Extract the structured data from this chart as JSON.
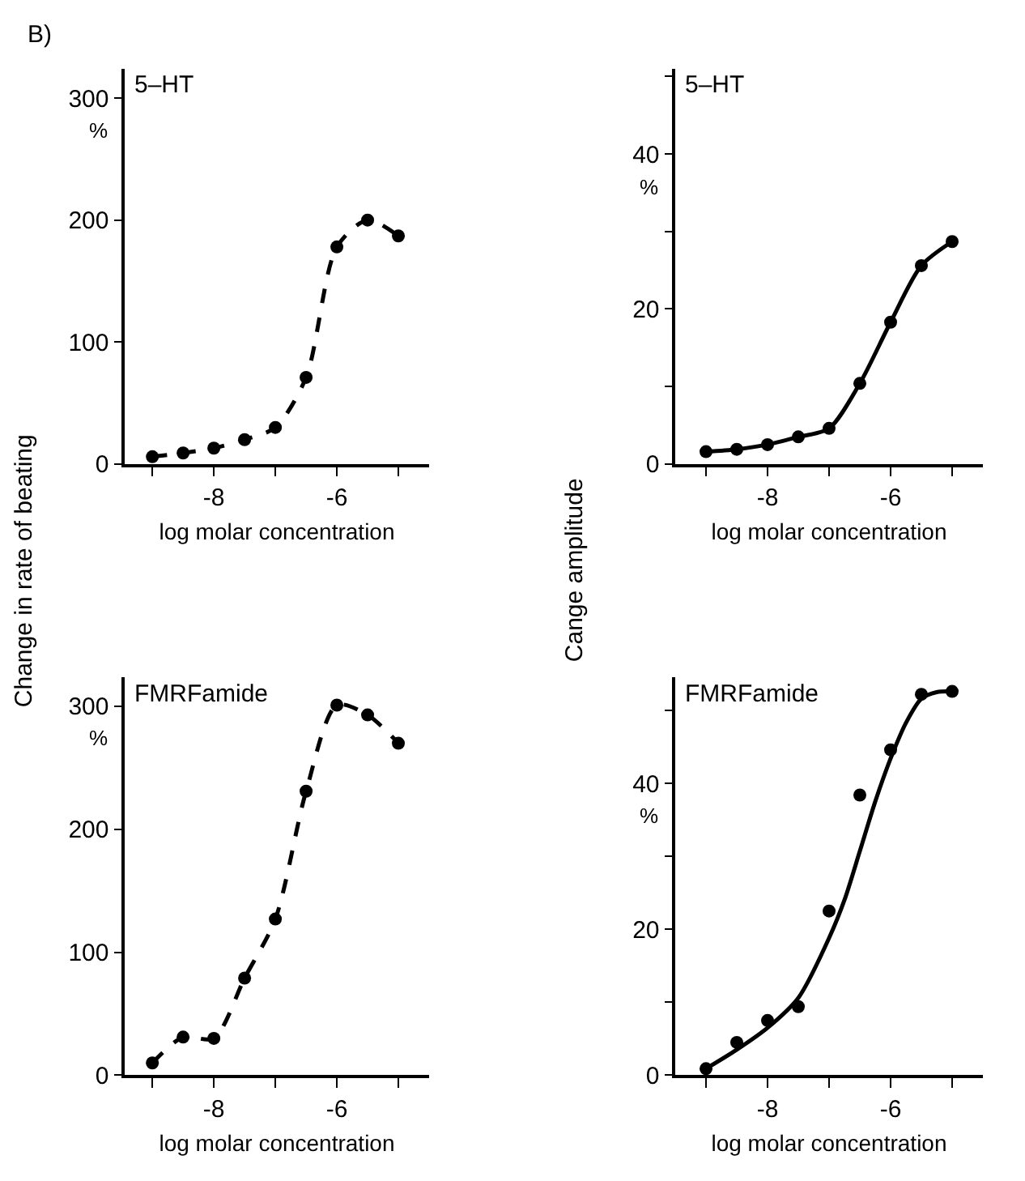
{
  "chart_data": [
    {
      "type": "line",
      "title": "B)",
      "xlabel": "log molar concentration",
      "annotations": [
        "5–HT",
        "%"
      ],
      "x": [
        -9,
        -8.5,
        -8,
        -7.5,
        -7,
        -6.5,
        -6,
        -5.5,
        -5
      ],
      "marker": "circle",
      "line_style": "dashed",
      "series": [
        {
          "color": "#000000",
          "values": [
            6,
            9,
            13,
            20,
            30,
            71,
            178,
            200,
            187
          ]
        }
      ],
      "xlim": [
        -9.45,
        -4.5
      ],
      "xticks": [
        {
          "value": -9,
          "label": null
        },
        -8,
        {
          "value": -7,
          "label": null
        },
        -6,
        {
          "value": -5,
          "label": null
        }
      ],
      "ylim": [
        0,
        324
      ],
      "yticks": [
        0,
        100,
        200,
        300
      ]
    },
    {
      "type": "line",
      "xlabel": "log molar concentration",
      "annotations": [
        "5–HT",
        "%"
      ],
      "x": [
        -9,
        -8.5,
        -8,
        -7.5,
        -7,
        -6.5,
        -6,
        -5.5,
        -5
      ],
      "marker": "circle",
      "line_style": "solid",
      "series": [
        {
          "color": "#000000",
          "values": [
            1.6,
            1.9,
            2.5,
            3.5,
            4.6,
            10.4,
            18.3,
            25.6,
            28.7
          ]
        }
      ],
      "xlim": [
        -9.5,
        -4.5
      ],
      "xticks": [
        {
          "value": -9,
          "label": null
        },
        -8,
        {
          "value": -7,
          "label": null
        },
        -6,
        {
          "value": -5,
          "label": null
        }
      ],
      "ylim": [
        0,
        51
      ],
      "yticks": [
        0,
        {
          "value": 10,
          "label": null
        },
        20,
        {
          "value": 30,
          "label": null
        },
        40,
        {
          "value": 50,
          "label": null
        }
      ]
    },
    {
      "type": "line",
      "xlabel": "log molar concentration",
      "ylabel": "Change in rate of beating",
      "annotations": [
        "FMRFamide",
        "%"
      ],
      "x": [
        -9,
        -8.5,
        -8,
        -7.5,
        -7,
        -6.5,
        -6,
        -5.5,
        -5
      ],
      "marker": "circle",
      "line_style": "dashed",
      "series": [
        {
          "color": "#000000",
          "values": [
            10,
            31,
            30,
            79,
            127,
            231,
            301,
            293,
            270
          ]
        }
      ],
      "xlim": [
        -9.45,
        -4.5
      ],
      "xticks": [
        {
          "value": -9,
          "label": null
        },
        -8,
        {
          "value": -7,
          "label": null
        },
        -6,
        {
          "value": -5,
          "label": null
        }
      ],
      "ylim": [
        0,
        324
      ],
      "yticks": [
        0,
        100,
        200,
        300
      ]
    },
    {
      "type": "scatter",
      "xlabel": "log molar concentration",
      "ylabel": "Cange amplitude",
      "annotations": [
        "FMRFamide",
        "%"
      ],
      "series": [
        {
          "color": "#000000",
          "marker": "circle",
          "x": [
            -9,
            -8.5,
            -8,
            -7.5,
            -7,
            -6.5,
            -6,
            -5.5,
            -5
          ],
          "values": [
            0.9,
            4.5,
            7.5,
            9.4,
            22.5,
            38.4,
            44.6,
            52.2,
            52.6
          ]
        },
        {
          "type": "line",
          "color": "#000000",
          "marker": "none",
          "line_style": "solid",
          "x": [
            -9,
            -8.5,
            -8,
            -7.5,
            -7,
            -6.75,
            -6.5,
            -6.25,
            -6,
            -5.75,
            -5.5,
            -5.25,
            -5
          ],
          "values": [
            0.9,
            3.5,
            6.5,
            10.6,
            18.8,
            24,
            30.7,
            37.5,
            43.4,
            48.3,
            51.6,
            52.5,
            52.6
          ]
        }
      ],
      "xlim": [
        -9.5,
        -4.5
      ],
      "xticks": [
        {
          "value": -9,
          "label": null
        },
        -8,
        {
          "value": -7,
          "label": null
        },
        -6,
        {
          "value": -5,
          "label": null
        }
      ],
      "ylim": [
        0,
        54.6
      ],
      "yticks": [
        0,
        {
          "value": 10,
          "label": null
        },
        20,
        {
          "value": 30,
          "label": null
        },
        40,
        {
          "value": 50,
          "label": null
        }
      ]
    }
  ]
}
